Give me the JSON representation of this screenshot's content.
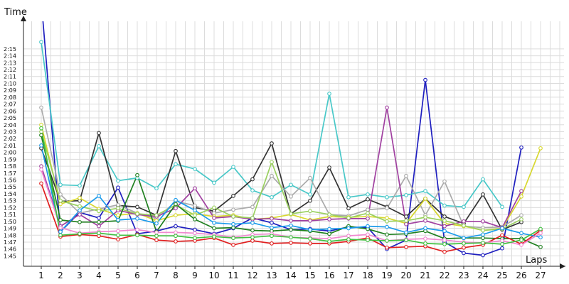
{
  "chart_data": {
    "type": "line",
    "ylabel": "Time",
    "xlabel": "Laps",
    "x": [
      1,
      2,
      3,
      4,
      5,
      6,
      7,
      8,
      9,
      10,
      11,
      12,
      13,
      14,
      15,
      16,
      17,
      18,
      19,
      20,
      21,
      22,
      23,
      24,
      25,
      26,
      27
    ],
    "y_unit": "seconds",
    "ylim": [
      103.5,
      139
    ],
    "y_ticks": [
      105,
      106,
      107,
      108,
      109,
      110,
      111,
      112,
      113,
      114,
      115,
      116,
      117,
      118,
      119,
      120,
      121,
      122,
      123,
      124,
      125,
      126,
      127,
      128,
      129,
      130,
      131,
      132,
      133,
      134,
      135
    ],
    "y_tick_labels": [
      "1:45",
      "1:46",
      "1:47",
      "1:48",
      "1:49",
      "1:50",
      "1:51",
      "1:52",
      "1:53",
      "1:54",
      "1:55",
      "1:56",
      "1:57",
      "1:58",
      "1:59",
      "2:00",
      "2:01",
      "2:02",
      "2:03",
      "2:04",
      "2:05",
      "2:06",
      "2:07",
      "2:08",
      "2:09",
      "2:10",
      "2:11",
      "2:12",
      "2:13",
      "2:14",
      "2:15"
    ],
    "x_tick_labels": [
      "1",
      "2",
      "3",
      "4",
      "5",
      "6",
      "7",
      "8",
      "9",
      "10",
      "11",
      "12",
      "13",
      "14",
      "15",
      "16",
      "17",
      "18",
      "19",
      "20",
      "21",
      "22",
      "23",
      "24",
      "25",
      "26",
      "27"
    ],
    "grid": true,
    "series": [
      {
        "color": "#1f1fbf",
        "values": [
          142.0,
          108.5,
          111.3,
          110.5,
          114.9,
          108.2,
          108.6,
          109.3,
          108.8,
          108.2,
          109.0,
          110.5,
          109.8,
          108.8,
          108.9,
          108.6,
          109.2,
          109.1,
          106.0,
          107.3,
          130.5,
          107.0,
          105.4,
          105.1,
          106.1,
          120.7,
          null
        ]
      },
      {
        "color": "#48c8c8",
        "values": [
          136.0,
          115.3,
          115.2,
          120.9,
          115.9,
          116.3,
          114.8,
          118.3,
          117.6,
          115.6,
          117.9,
          114.5,
          113.5,
          115.3,
          113.9,
          128.5,
          113.5,
          113.9,
          113.5,
          113.8,
          114.4,
          112.3,
          112.1,
          116.1,
          112.1,
          null,
          null
        ]
      },
      {
        "color": "#333333",
        "values": [
          120.6,
          112.9,
          113.0,
          122.8,
          112.3,
          112.1,
          110.9,
          120.2,
          112.0,
          111.5,
          113.7,
          116.1,
          121.3,
          111.1,
          113.0,
          117.8,
          111.9,
          113.2,
          112.1,
          110.7,
          113.3,
          110.7,
          109.7,
          113.9,
          108.8,
          109.9,
          null
        ]
      },
      {
        "color": "#aaaaaa",
        "values": [
          126.5,
          113.9,
          111.2,
          111.8,
          112.4,
          111.2,
          110.4,
          112.9,
          112.3,
          111.2,
          111.7,
          112.1,
          116.6,
          113.6,
          116.3,
          111.0,
          110.8,
          111.7,
          111.9,
          116.6,
          110.9,
          115.8,
          109.3,
          109.1,
          109.2,
          110.9,
          null
        ]
      },
      {
        "color": "#d8d830",
        "values": [
          124.0,
          112.5,
          113.4,
          111.8,
          110.9,
          111.2,
          110.1,
          110.9,
          111.1,
          110.7,
          110.9,
          110.3,
          110.5,
          111.0,
          110.2,
          110.7,
          110.6,
          110.7,
          110.5,
          109.7,
          113.3,
          109.7,
          109.3,
          108.7,
          109.0,
          113.6,
          120.6
        ]
      },
      {
        "color": "#a040a0",
        "values": [
          118.0,
          109.3,
          111.0,
          109.3,
          111.6,
          111.0,
          110.7,
          111.9,
          114.8,
          110.5,
          110.7,
          110.3,
          110.4,
          110.1,
          110.1,
          110.3,
          110.4,
          110.4,
          126.5,
          109.6,
          110.1,
          109.3,
          110.0,
          110.0,
          109.1,
          114.4,
          null
        ]
      },
      {
        "color": "#9ad060",
        "values": [
          123.0,
          113.0,
          112.2,
          111.5,
          111.9,
          111.1,
          110.9,
          112.4,
          110.9,
          112.0,
          110.7,
          110.5,
          118.6,
          111.1,
          111.5,
          111.0,
          110.5,
          111.2,
          110.0,
          110.1,
          110.6,
          110.1,
          109.4,
          108.7,
          108.9,
          110.3,
          null
        ]
      },
      {
        "color": "#208020",
        "values": [
          122.5,
          110.2,
          109.9,
          109.9,
          110.1,
          116.7,
          108.5,
          112.5,
          110.3,
          109.0,
          109.1,
          108.7,
          108.6,
          108.8,
          108.6,
          108.2,
          109.3,
          108.9,
          108.1,
          108.2,
          108.6,
          107.5,
          107.6,
          107.6,
          107.5,
          107.5,
          106.3
        ]
      },
      {
        "color": "#e02020",
        "values": [
          115.5,
          107.8,
          108.1,
          107.9,
          107.4,
          108.1,
          107.3,
          107.1,
          107.2,
          107.6,
          106.6,
          107.2,
          106.8,
          106.9,
          106.8,
          106.8,
          107.1,
          107.6,
          106.2,
          106.3,
          106.4,
          105.6,
          106.2,
          106.6,
          108.0,
          106.7,
          108.7
        ]
      },
      {
        "color": "#1a9aea",
        "values": [
          121.0,
          108.5,
          111.6,
          113.7,
          110.2,
          110.4,
          109.7,
          113.1,
          111.6,
          109.8,
          109.6,
          109.8,
          109.1,
          109.4,
          108.8,
          108.9,
          109.0,
          109.3,
          109.2,
          108.4,
          109.0,
          108.6,
          107.6,
          108.1,
          109.0,
          108.3,
          107.7
        ]
      },
      {
        "color": "#f088d0",
        "values": [
          117.5,
          109.1,
          108.3,
          108.5,
          108.6,
          108.8,
          108.4,
          108.4,
          108.3,
          108.1,
          107.7,
          108.1,
          108.2,
          107.7,
          107.6,
          107.5,
          107.9,
          108.1,
          107.2,
          107.4,
          107.5,
          107.3,
          107.0,
          106.9,
          107.2,
          106.6,
          108.3
        ]
      },
      {
        "color": "#40c040",
        "values": [
          123.5,
          108.0,
          108.2,
          108.3,
          108.0,
          108.0,
          107.9,
          107.9,
          107.6,
          107.8,
          107.6,
          107.7,
          107.9,
          107.7,
          107.5,
          107.1,
          107.4,
          107.3,
          107.2,
          107.3,
          106.8,
          106.7,
          106.8,
          106.9,
          106.7,
          107.3,
          108.9
        ]
      }
    ]
  }
}
